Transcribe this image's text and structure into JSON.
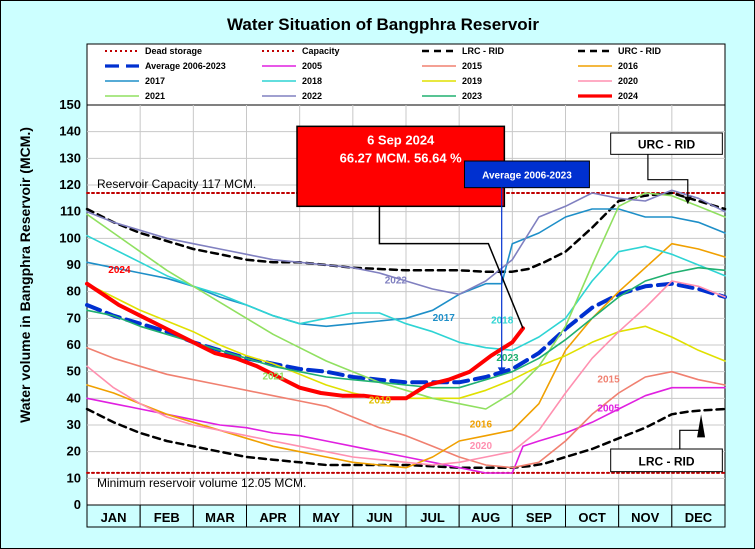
{
  "chart_data": {
    "type": "line",
    "title": "Water Situation of Bangphra Reservoir",
    "ylabel": "Water volume in Bangphra Reservoir (MCM.)",
    "ylim": [
      0,
      150
    ],
    "yticks": [
      0,
      10,
      20,
      30,
      40,
      50,
      60,
      70,
      80,
      90,
      100,
      110,
      120,
      130,
      140,
      150
    ],
    "months": [
      "JAN",
      "FEB",
      "MAR",
      "APR",
      "MAY",
      "JUN",
      "JUL",
      "AUG",
      "SEP",
      "OCT",
      "NOV",
      "DEC"
    ],
    "x_unit": "month (0 = 1 Jan, 12 = 31 Dec)",
    "grid": true,
    "legend_position": "top",
    "annotations": {
      "capacity_text": "Reservoir Capacity 117 MCM.",
      "minimum_text": "Minimum reservoir volume 12.05 MCM.",
      "callout_line1": "6 Sep 2024",
      "callout_line2": "66.27 MCM. 56.64 %",
      "avg_box": "Average 2006-2023",
      "urc_box": "URC - RID",
      "lrc_box": "LRC - RID"
    },
    "labels_on_chart": [
      {
        "text": "2024",
        "x": 0.4,
        "y": 87,
        "color": "#ff0000"
      },
      {
        "text": "2022",
        "x": 5.6,
        "y": 83,
        "color": "#8080c0"
      },
      {
        "text": "2017",
        "x": 6.5,
        "y": 69,
        "color": "#1e8fc8"
      },
      {
        "text": "2018",
        "x": 7.6,
        "y": 68,
        "color": "#2ed4d4"
      },
      {
        "text": "2023",
        "x": 7.7,
        "y": 54,
        "color": "#20b070"
      },
      {
        "text": "2021",
        "x": 3.3,
        "y": 47,
        "color": "#90e060"
      },
      {
        "text": "2019",
        "x": 5.3,
        "y": 38,
        "color": "#e0c000"
      },
      {
        "text": "2016",
        "x": 7.2,
        "y": 29,
        "color": "#f0a000"
      },
      {
        "text": "2020",
        "x": 7.2,
        "y": 21,
        "color": "#ff90b0"
      },
      {
        "text": "2015",
        "x": 9.6,
        "y": 46,
        "color": "#f08070"
      },
      {
        "text": "2005",
        "x": 9.6,
        "y": 35,
        "color": "#e020e0"
      }
    ],
    "series": [
      {
        "name": "Dead storage",
        "color": "#c00000",
        "dash": "dot",
        "x": [
          0,
          12
        ],
        "y": [
          12.05,
          12.05
        ]
      },
      {
        "name": "Capacity",
        "color": "#c00000",
        "dash": "dot",
        "x": [
          0,
          12
        ],
        "y": [
          117,
          117
        ]
      },
      {
        "name": "LRC - RID",
        "color": "#000000",
        "dash": "dash",
        "x": [
          0,
          0.5,
          1,
          1.5,
          2,
          2.5,
          3,
          3.5,
          4,
          4.5,
          5,
          5.5,
          6,
          6.5,
          7,
          7.5,
          8,
          8.3,
          8.6,
          9,
          9.5,
          10,
          10.5,
          11,
          11.3,
          11.6,
          12
        ],
        "y": [
          36,
          31,
          27,
          24,
          22,
          20,
          18,
          17,
          16,
          15,
          15,
          15,
          15,
          14.5,
          14,
          14,
          14,
          14.5,
          15.5,
          18,
          21,
          25,
          29,
          34,
          35,
          35.5,
          36
        ]
      },
      {
        "name": "URC - RID",
        "color": "#000000",
        "dash": "dash",
        "x": [
          0,
          0.5,
          1,
          1.5,
          2,
          2.5,
          3,
          3.5,
          4,
          4.5,
          5,
          5.5,
          6,
          6.5,
          7,
          7.5,
          8,
          8.3,
          8.6,
          9,
          9.5,
          10,
          10.5,
          11,
          11.5,
          12
        ],
        "y": [
          111,
          106,
          102,
          99,
          96,
          94,
          92,
          91,
          91,
          90,
          89,
          88.5,
          88,
          88,
          88,
          87.5,
          87.5,
          88.5,
          91,
          95,
          104,
          114,
          116,
          117,
          114,
          111
        ]
      },
      {
        "name": "Average 2006-2023",
        "color": "#0030d0",
        "dash": "longdash",
        "x": [
          0,
          0.5,
          1,
          1.5,
          2,
          2.5,
          3,
          3.5,
          4,
          4.5,
          5,
          5.5,
          6,
          6.5,
          7,
          7.5,
          8,
          8.5,
          9,
          9.5,
          10,
          10.5,
          11,
          11.5,
          12
        ],
        "y": [
          75,
          71,
          68,
          65,
          61,
          58,
          55,
          53,
          51,
          50,
          48,
          47,
          46,
          46,
          46,
          48,
          51,
          57,
          66,
          74,
          79,
          82,
          83,
          81,
          78
        ]
      },
      {
        "name": "2005",
        "color": "#e020e0",
        "dash": "solid",
        "x": [
          0,
          0.5,
          1,
          1.5,
          2,
          2.5,
          3,
          3.5,
          4,
          4.5,
          5,
          5.5,
          6,
          6.5,
          7,
          7.5,
          8,
          8.2,
          8.5,
          9,
          9.5,
          10,
          10.5,
          11,
          11.5,
          12
        ],
        "y": [
          40,
          38,
          36,
          34,
          32,
          30,
          29,
          27,
          26,
          24,
          22,
          20,
          18,
          16,
          14,
          12,
          12,
          22,
          24,
          27,
          31,
          36,
          41,
          44,
          44,
          44
        ]
      },
      {
        "name": "2015",
        "color": "#f08070",
        "dash": "solid",
        "x": [
          0,
          0.5,
          1,
          1.5,
          2,
          2.5,
          3,
          3.5,
          4,
          4.5,
          5,
          5.5,
          6,
          6.5,
          7,
          7.5,
          8,
          8.5,
          9,
          9.5,
          10,
          10.5,
          11,
          11.5,
          12
        ],
        "y": [
          59,
          55,
          52,
          49,
          47,
          45,
          43,
          41,
          39,
          37,
          33,
          29,
          26,
          22,
          18,
          15,
          14,
          16,
          24,
          34,
          42,
          48,
          50,
          47,
          45
        ]
      },
      {
        "name": "2016",
        "color": "#f0a000",
        "dash": "solid",
        "x": [
          0,
          0.5,
          1,
          1.5,
          2,
          2.5,
          3,
          3.5,
          4,
          4.5,
          5,
          5.5,
          6,
          6.5,
          7,
          7.5,
          8,
          8.5,
          9,
          9.5,
          10,
          10.5,
          11,
          11.5,
          12
        ],
        "y": [
          45,
          42,
          38,
          34,
          31,
          28,
          25,
          22,
          20,
          18,
          16,
          15,
          14,
          18,
          24,
          26,
          28,
          38,
          58,
          70,
          80,
          89,
          98,
          96,
          93
        ]
      },
      {
        "name": "2017",
        "color": "#1e8fc8",
        "dash": "solid",
        "x": [
          0,
          0.5,
          1,
          1.5,
          2,
          2.5,
          3,
          3.5,
          4,
          4.5,
          5,
          5.5,
          6,
          6.5,
          7,
          7.5,
          7.8,
          8,
          8.5,
          9,
          9.5,
          10,
          10.5,
          11,
          11.5,
          12
        ],
        "y": [
          91,
          89,
          87,
          85,
          82,
          78,
          75,
          71,
          68,
          67,
          68,
          69,
          70,
          73,
          79,
          83,
          83,
          98,
          102,
          108,
          111,
          111,
          108,
          108,
          106,
          102
        ]
      },
      {
        "name": "2018",
        "color": "#2ed4d4",
        "dash": "solid",
        "x": [
          0,
          0.5,
          1,
          1.5,
          2,
          2.5,
          3,
          3.5,
          4,
          4.5,
          5,
          5.5,
          6,
          6.5,
          7,
          7.5,
          8,
          8.5,
          9,
          9.5,
          10,
          10.5,
          11,
          11.5,
          12
        ],
        "y": [
          101,
          96,
          91,
          86,
          82,
          79,
          75,
          71,
          68,
          70,
          72,
          72,
          68,
          65,
          61,
          59,
          58,
          63,
          70,
          84,
          95,
          97,
          94,
          90,
          86
        ]
      },
      {
        "name": "2019",
        "color": "#e0e000",
        "dash": "solid",
        "x": [
          0,
          0.5,
          1,
          1.5,
          2,
          2.5,
          3,
          3.5,
          4,
          4.5,
          5,
          5.5,
          6,
          6.5,
          7,
          7.5,
          8,
          8.5,
          9,
          9.5,
          10,
          10.5,
          11,
          11.5,
          12
        ],
        "y": [
          83,
          78,
          73,
          69,
          65,
          60,
          56,
          53,
          49,
          45,
          42,
          40,
          40,
          40,
          40,
          43,
          47,
          52,
          56,
          61,
          65,
          67,
          63,
          58,
          54
        ]
      },
      {
        "name": "2020",
        "color": "#ff90b0",
        "dash": "solid",
        "x": [
          0,
          0.5,
          1,
          1.5,
          2,
          2.5,
          3,
          3.5,
          4,
          4.5,
          5,
          5.5,
          6,
          6.5,
          7,
          7.5,
          8,
          8.5,
          9,
          9.5,
          10,
          10.5,
          11,
          11.5,
          12
        ],
        "y": [
          52,
          44,
          38,
          33,
          30,
          28,
          26,
          24,
          22,
          20,
          18,
          17,
          16,
          15,
          16,
          18,
          20,
          28,
          42,
          55,
          65,
          74,
          84,
          82,
          78
        ]
      },
      {
        "name": "2021",
        "color": "#90e060",
        "dash": "solid",
        "x": [
          0,
          0.5,
          1,
          1.5,
          2,
          2.5,
          3,
          3.5,
          4,
          4.5,
          5,
          5.5,
          6,
          6.5,
          7,
          7.5,
          8,
          8.5,
          9,
          9.5,
          10,
          10.5,
          11,
          11.5,
          12
        ],
        "y": [
          109,
          102,
          95,
          88,
          82,
          76,
          70,
          64,
          59,
          54,
          50,
          46,
          43,
          40,
          38,
          36,
          42,
          52,
          67,
          90,
          112,
          117,
          116,
          112,
          108
        ]
      },
      {
        "name": "2022",
        "color": "#8080c0",
        "dash": "solid",
        "x": [
          0,
          0.5,
          1,
          1.5,
          2,
          2.5,
          3,
          3.5,
          4,
          4.5,
          5,
          5.5,
          6,
          6.5,
          7,
          7.5,
          8,
          8.5,
          9,
          9.5,
          10,
          10.5,
          11,
          11.5,
          12
        ],
        "y": [
          110,
          106,
          103,
          100,
          98,
          96,
          94,
          92,
          91,
          90,
          89,
          87,
          84,
          81,
          79,
          84,
          92,
          108,
          112,
          117,
          115,
          114,
          118,
          115,
          110
        ]
      },
      {
        "name": "2023",
        "color": "#20b070",
        "dash": "solid",
        "x": [
          0,
          0.5,
          1,
          1.5,
          2,
          2.5,
          3,
          3.5,
          4,
          4.5,
          5,
          5.5,
          6,
          6.5,
          7,
          7.5,
          8,
          8.5,
          9,
          9.5,
          10,
          10.5,
          11,
          11.5,
          12
        ],
        "y": [
          73,
          71,
          67,
          64,
          61,
          58,
          55,
          52,
          50,
          48,
          47,
          46,
          45,
          44,
          44,
          47,
          50,
          55,
          62,
          70,
          78,
          84,
          87,
          89,
          88
        ]
      },
      {
        "name": "2024",
        "color": "#ff0000",
        "dash": "solid",
        "x": [
          0,
          0.3,
          0.6,
          1,
          1.5,
          2,
          2.4,
          2.8,
          3.2,
          3.6,
          4,
          4.4,
          4.8,
          5.2,
          5.6,
          6,
          6.4,
          6.8,
          7.2,
          7.6,
          8,
          8.2
        ],
        "y": [
          83,
          79,
          75,
          71,
          66,
          61,
          57,
          55,
          52,
          48,
          44,
          42,
          41,
          41,
          40,
          40,
          45,
          47,
          50,
          56,
          61,
          66.27
        ]
      }
    ],
    "current_point": {
      "x": 8.2,
      "y": 66.27
    }
  }
}
